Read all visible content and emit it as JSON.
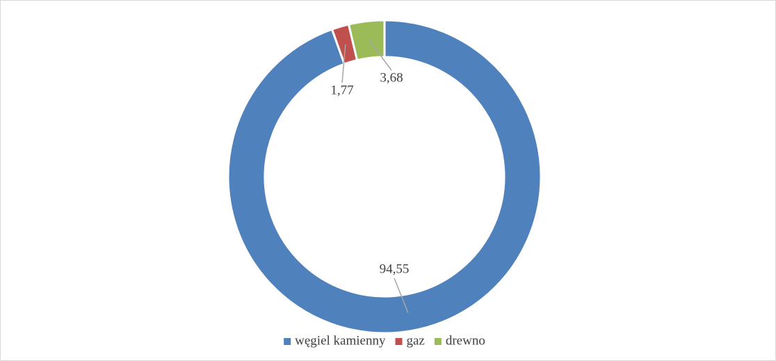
{
  "chart_data": {
    "type": "donut",
    "categories": [
      "węgiel kamienny",
      "gaz",
      "drewno"
    ],
    "values": [
      94.55,
      1.77,
      3.68
    ],
    "value_labels": [
      "94,55",
      "1,77",
      "3,68"
    ],
    "colors": [
      "#4f81bd",
      "#c0504d",
      "#9bbb59"
    ],
    "legend": "bottom"
  }
}
